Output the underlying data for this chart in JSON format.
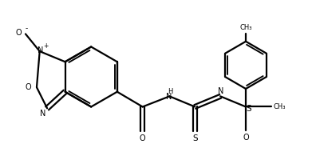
{
  "background_color": "#ffffff",
  "line_color": "#000000",
  "line_width": 1.6,
  "fig_width": 3.96,
  "fig_height": 1.9,
  "dpi": 100,
  "xlim": [
    0.0,
    4.0
  ],
  "ylim": [
    0.1,
    2.0
  ]
}
